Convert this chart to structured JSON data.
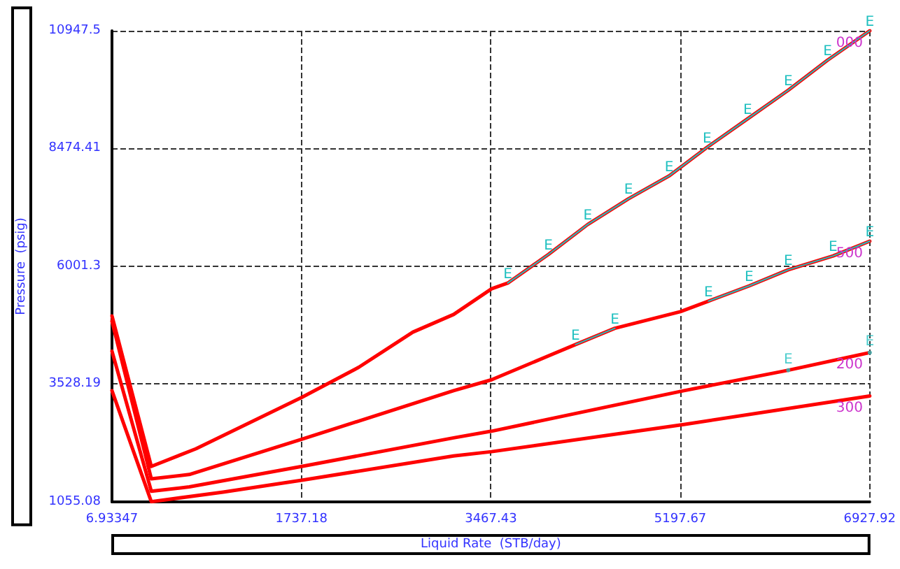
{
  "chart_data": {
    "type": "line",
    "xlabel": "Liquid Rate  (STB/day)",
    "ylabel": "Pressure  (psig)",
    "xlim": [
      6.93347,
      6927.92
    ],
    "ylim": [
      1055.08,
      10947.5
    ],
    "xticks": [
      6.93347,
      1737.18,
      3467.43,
      5197.67,
      6927.92
    ],
    "yticks": [
      1055.08,
      3528.19,
      6001.3,
      8474.41,
      10947.5
    ],
    "grid": true,
    "marker": "none",
    "line_style": "solid",
    "series": [
      {
        "name": "000",
        "color": "#ff0000",
        "x": [
          6.93347,
          366,
          774,
          1740,
          2260,
          2755,
          3127,
          3474,
          3622,
          3993,
          4352,
          4724,
          5095,
          5442,
          5813,
          6184,
          6543,
          6927.92
        ],
        "values": [
          4960,
          1800,
          2170,
          3250,
          3880,
          4620,
          4990,
          5530,
          5650,
          6250,
          6880,
          7420,
          7900,
          8500,
          9100,
          9700,
          10330,
          10947.5
        ]
      },
      {
        "name": "500",
        "color": "#ff0000",
        "x": [
          6.93347,
          366,
          713,
          1740,
          3127,
          3474,
          4241,
          4600,
          5197.67,
          5454,
          5826,
          6184,
          6593,
          6927.92
        ],
        "values": [
          4850,
          1540,
          1630,
          2370,
          3390,
          3620,
          4360,
          4700,
          5050,
          5270,
          5590,
          5930,
          6220,
          6530
        ]
      },
      {
        "name": "200",
        "color": "#ff0000",
        "x": [
          6.93347,
          366,
          713,
          1740,
          3127,
          3474,
          5231,
          6184,
          6927.92
        ],
        "values": [
          4220,
          1280,
          1370,
          1800,
          2400,
          2540,
          3390,
          3820,
          4190
        ]
      },
      {
        "name": "300",
        "color": "#ff0000",
        "x": [
          6.93347,
          366,
          1022,
          1740,
          3127,
          3474,
          5231,
          6927.92
        ],
        "values": [
          3390,
          1060,
          1260,
          1510,
          2020,
          2110,
          2680,
          3280
        ]
      },
      {
        "color": "#20c0c0",
        "x": [
          3622,
          3993,
          4352,
          4724,
          5095,
          5442,
          5813,
          6184,
          6543,
          6927.92
        ],
        "values": [
          5650,
          6250,
          6880,
          7420,
          7900,
          8500,
          9100,
          9700,
          10330,
          10947.5
        ],
        "value_labels": [
          "E",
          "E",
          "E",
          "E",
          "E",
          "E",
          "E",
          "E",
          "E",
          "E"
        ]
      },
      {
        "color": "#20c0c0",
        "x": [
          4241,
          4600,
          5000,
          5454,
          5826,
          6184,
          6593,
          6927.92
        ],
        "values": [
          4360,
          4700,
          null,
          5270,
          5590,
          5930,
          6220,
          6530
        ],
        "value_labels": [
          "E",
          "E",
          null,
          "E",
          "E",
          "E",
          "E",
          "E"
        ]
      },
      {
        "type": "scatter",
        "marker": "circle",
        "color": "#20c0c0",
        "x": [
          6184,
          6927.92
        ],
        "values": [
          3820,
          4190
        ],
        "value_labels": [
          "E",
          "E"
        ]
      }
    ]
  }
}
